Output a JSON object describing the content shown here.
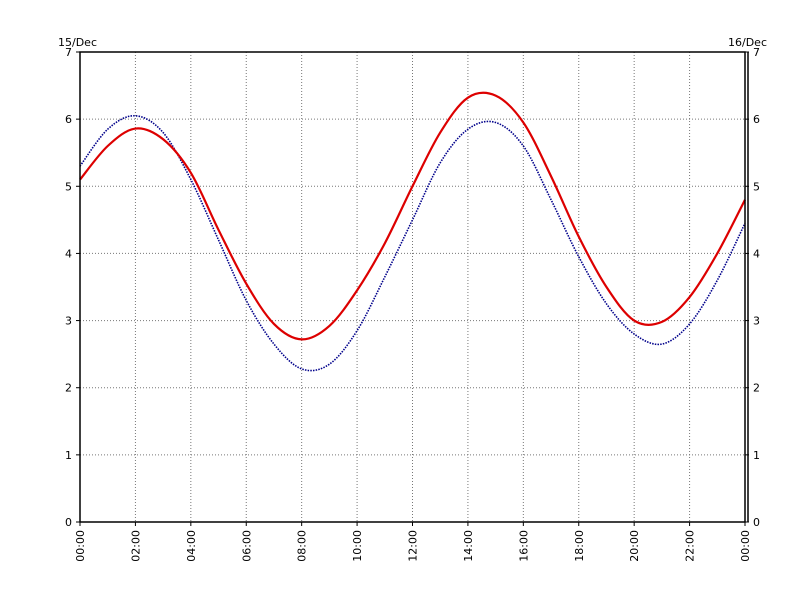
{
  "chart_data": {
    "type": "line",
    "title": "",
    "xlabel": "",
    "ylabel": "",
    "date_left": "15/Dec",
    "date_right": "16/Dec",
    "xlim": [
      0,
      24
    ],
    "ylim": [
      0,
      7
    ],
    "x_ticks": [
      "00:00",
      "02:00",
      "04:00",
      "06:00",
      "08:00",
      "10:00",
      "12:00",
      "14:00",
      "16:00",
      "18:00",
      "20:00",
      "22:00",
      "00:00"
    ],
    "y_ticks": [
      "0",
      "1",
      "2",
      "3",
      "4",
      "5",
      "6",
      "7"
    ],
    "grid": true,
    "series": [
      {
        "color": "#dd0000",
        "style": "solid",
        "x": [
          0,
          1,
          2,
          3,
          4,
          5,
          6,
          7,
          8,
          9,
          10,
          11,
          12,
          13,
          14,
          15,
          16,
          17,
          18,
          19,
          20,
          21,
          22,
          23,
          24
        ],
        "y": [
          5.1,
          5.6,
          5.86,
          5.7,
          5.2,
          4.35,
          3.55,
          2.95,
          2.72,
          2.92,
          3.45,
          4.15,
          5.0,
          5.8,
          6.32,
          6.35,
          5.95,
          5.15,
          4.25,
          3.5,
          3.0,
          2.98,
          3.35,
          4.0,
          4.8
        ]
      },
      {
        "color": "#00008b",
        "style": "dotted",
        "x": [
          0,
          1,
          2,
          3,
          4,
          5,
          6,
          7,
          8,
          9,
          10,
          11,
          12,
          13,
          14,
          15,
          16,
          17,
          18,
          19,
          20,
          21,
          22,
          23,
          24
        ],
        "y": [
          5.3,
          5.85,
          6.05,
          5.8,
          5.1,
          4.2,
          3.3,
          2.65,
          2.28,
          2.35,
          2.85,
          3.65,
          4.5,
          5.35,
          5.85,
          5.95,
          5.6,
          4.8,
          3.95,
          3.25,
          2.8,
          2.65,
          2.95,
          3.6,
          4.45
        ]
      }
    ]
  }
}
